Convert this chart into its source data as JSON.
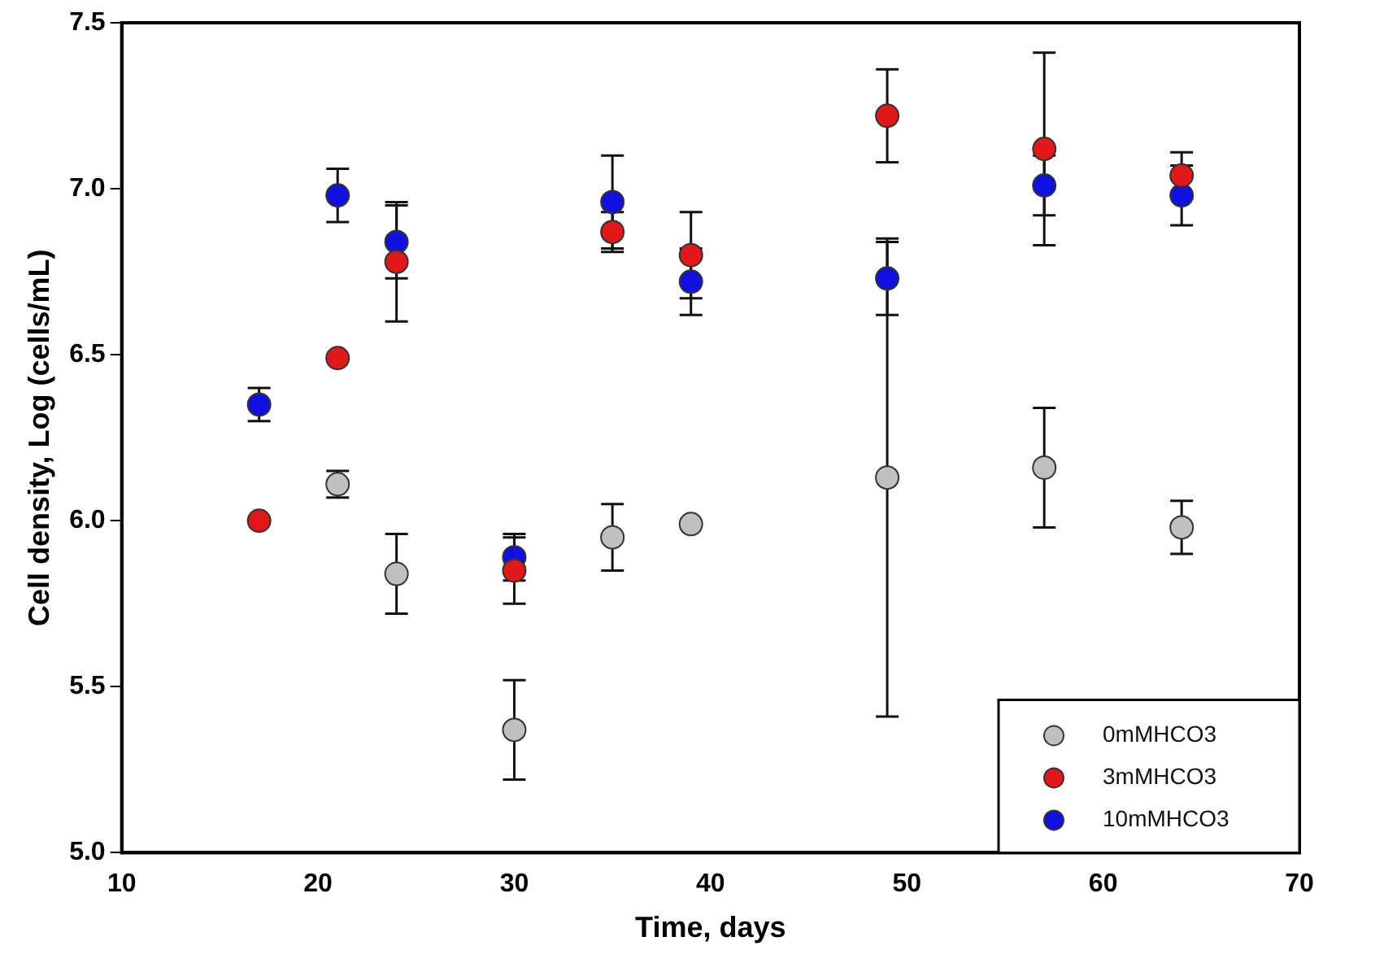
{
  "chart_data": {
    "type": "scatter",
    "xlabel": "Time, days",
    "ylabel": "Cell density, Log (cells/mL)",
    "xlim": [
      10,
      70
    ],
    "xticks": [
      10,
      20,
      30,
      40,
      50,
      60,
      70
    ],
    "ylim": [
      5.0,
      7.5
    ],
    "yticks": [
      {
        "value": 5.0,
        "label": "5.0"
      },
      {
        "value": 5.5,
        "label": "5.5"
      },
      {
        "value": 6.0,
        "label": "6.0"
      },
      {
        "value": 6.5,
        "label": "6.5"
      },
      {
        "value": 7.0,
        "label": "7.0"
      },
      {
        "value": 7.5,
        "label": "7.5"
      }
    ],
    "grid": false,
    "legend": "bottom right",
    "marker": "circle",
    "series": [
      {
        "name": "0mMHCO3",
        "color": "#c0c0c0",
        "x": [
          21,
          24,
          30,
          35,
          39,
          49,
          57,
          64
        ],
        "values": [
          6.11,
          5.84,
          5.37,
          5.95,
          5.99,
          6.13,
          6.16,
          5.98
        ],
        "errors": [
          0.04,
          0.12,
          0.15,
          0.1,
          null,
          0.72,
          0.18,
          0.08
        ]
      },
      {
        "name": "3mMHCO3",
        "color": "#e01818",
        "x": [
          17,
          21,
          24,
          30,
          35,
          39,
          49,
          57,
          64
        ],
        "values": [
          6.0,
          6.49,
          6.78,
          5.85,
          6.87,
          6.8,
          7.22,
          7.12,
          7.04
        ],
        "errors": [
          null,
          null,
          0.18,
          0.1,
          0.06,
          0.13,
          0.14,
          0.29,
          0.07
        ]
      },
      {
        "name": "10mMHCO3",
        "color": "#1010e0",
        "x": [
          17,
          21,
          24,
          30,
          35,
          39,
          49,
          57,
          64
        ],
        "values": [
          6.35,
          6.98,
          6.84,
          5.89,
          6.96,
          6.72,
          6.73,
          7.01,
          6.98
        ],
        "errors": [
          0.05,
          0.08,
          0.11,
          0.07,
          0.14,
          0.1,
          0.11,
          0.09,
          0.09
        ]
      }
    ]
  }
}
